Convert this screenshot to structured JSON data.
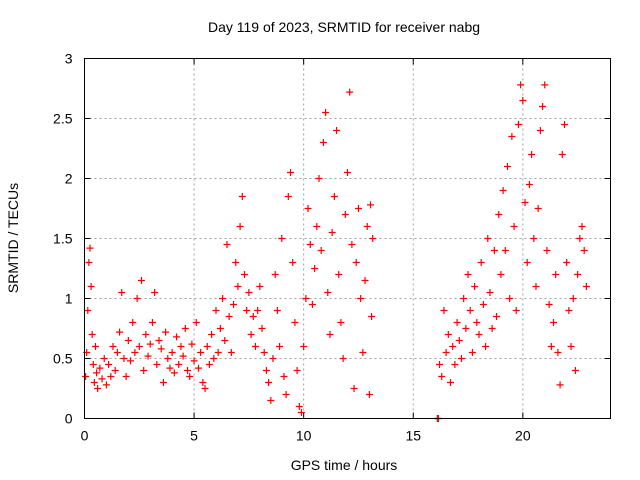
{
  "chart_data": {
    "type": "scatter",
    "title": "Day 119 of 2023, SRMTID for receiver nabg",
    "xlabel": "GPS time / hours",
    "ylabel": "SRMTID / TECUs",
    "xlim": [
      0,
      24
    ],
    "ylim": [
      0,
      3
    ],
    "xticks": [
      0,
      5,
      10,
      15,
      20
    ],
    "xtick_labels": [
      "0",
      "5",
      "10",
      "15",
      "20"
    ],
    "yticks": [
      0,
      0.5,
      1,
      1.5,
      2,
      2.5,
      3
    ],
    "ytick_labels": [
      "0",
      "0.5",
      "1",
      "1.5",
      "2",
      "2.5",
      "3"
    ],
    "grid": true,
    "marker": "+",
    "color": "#ff0000",
    "series": [
      {
        "name": "SRMTID",
        "points": [
          [
            0.05,
            0.35
          ],
          [
            0.1,
            0.55
          ],
          [
            0.15,
            0.9
          ],
          [
            0.2,
            1.3
          ],
          [
            0.25,
            1.42
          ],
          [
            0.3,
            1.1
          ],
          [
            0.35,
            0.7
          ],
          [
            0.4,
            0.45
          ],
          [
            0.45,
            0.3
          ],
          [
            0.5,
            0.6
          ],
          [
            0.55,
            0.38
          ],
          [
            0.6,
            0.25
          ],
          [
            0.7,
            0.42
          ],
          [
            0.8,
            0.33
          ],
          [
            0.9,
            0.5
          ],
          [
            1.0,
            0.28
          ],
          [
            1.1,
            0.45
          ],
          [
            1.2,
            0.35
          ],
          [
            1.3,
            0.6
          ],
          [
            1.4,
            0.4
          ],
          [
            1.5,
            0.55
          ],
          [
            1.6,
            0.72
          ],
          [
            1.7,
            1.05
          ],
          [
            1.8,
            0.5
          ],
          [
            1.9,
            0.35
          ],
          [
            2.0,
            0.65
          ],
          [
            2.1,
            0.48
          ],
          [
            2.2,
            0.8
          ],
          [
            2.3,
            0.55
          ],
          [
            2.4,
            1.0
          ],
          [
            2.5,
            0.6
          ],
          [
            2.6,
            1.15
          ],
          [
            2.7,
            0.4
          ],
          [
            2.8,
            0.7
          ],
          [
            2.9,
            0.52
          ],
          [
            3.0,
            0.62
          ],
          [
            3.1,
            0.8
          ],
          [
            3.2,
            1.05
          ],
          [
            3.3,
            0.45
          ],
          [
            3.4,
            0.65
          ],
          [
            3.5,
            0.58
          ],
          [
            3.6,
            0.3
          ],
          [
            3.7,
            0.72
          ],
          [
            3.8,
            0.5
          ],
          [
            3.9,
            0.42
          ],
          [
            4.0,
            0.55
          ],
          [
            4.1,
            0.38
          ],
          [
            4.2,
            0.68
          ],
          [
            4.3,
            0.45
          ],
          [
            4.4,
            0.6
          ],
          [
            4.5,
            0.52
          ],
          [
            4.6,
            0.75
          ],
          [
            4.7,
            0.4
          ],
          [
            4.8,
            0.35
          ],
          [
            4.9,
            0.62
          ],
          [
            5.0,
            0.48
          ],
          [
            5.1,
            0.8
          ],
          [
            5.2,
            0.42
          ],
          [
            5.3,
            0.55
          ],
          [
            5.4,
            0.3
          ],
          [
            5.5,
            0.25
          ],
          [
            5.6,
            0.6
          ],
          [
            5.7,
            0.45
          ],
          [
            5.8,
            0.7
          ],
          [
            5.9,
            0.5
          ],
          [
            6.0,
            0.9
          ],
          [
            6.1,
            0.55
          ],
          [
            6.2,
            0.75
          ],
          [
            6.3,
            1.0
          ],
          [
            6.4,
            0.65
          ],
          [
            6.5,
            1.45
          ],
          [
            6.6,
            0.85
          ],
          [
            6.7,
            0.55
          ],
          [
            6.8,
            0.95
          ],
          [
            6.9,
            1.3
          ],
          [
            7.0,
            1.1
          ],
          [
            7.1,
            1.6
          ],
          [
            7.2,
            1.85
          ],
          [
            7.3,
            1.2
          ],
          [
            7.4,
            0.9
          ],
          [
            7.5,
            1.05
          ],
          [
            7.6,
            0.7
          ],
          [
            7.7,
            0.85
          ],
          [
            7.8,
            0.6
          ],
          [
            7.9,
            0.9
          ],
          [
            8.0,
            1.1
          ],
          [
            8.1,
            0.75
          ],
          [
            8.2,
            0.55
          ],
          [
            8.3,
            0.4
          ],
          [
            8.4,
            0.3
          ],
          [
            8.5,
            0.15
          ],
          [
            8.6,
            0.5
          ],
          [
            8.7,
            1.2
          ],
          [
            8.8,
            0.9
          ],
          [
            8.9,
            0.6
          ],
          [
            9.0,
            1.5
          ],
          [
            9.1,
            0.35
          ],
          [
            9.2,
            0.2
          ],
          [
            9.3,
            1.85
          ],
          [
            9.4,
            2.05
          ],
          [
            9.5,
            1.3
          ],
          [
            9.6,
            0.8
          ],
          [
            9.7,
            0.4
          ],
          [
            9.8,
            0.1
          ],
          [
            9.9,
            0.05
          ],
          [
            10.0,
            0.6
          ],
          [
            10.1,
            1.0
          ],
          [
            10.2,
            1.75
          ],
          [
            10.3,
            1.45
          ],
          [
            10.4,
            0.95
          ],
          [
            10.5,
            1.25
          ],
          [
            10.6,
            1.6
          ],
          [
            10.7,
            2.0
          ],
          [
            10.8,
            1.4
          ],
          [
            10.9,
            2.3
          ],
          [
            11.0,
            2.55
          ],
          [
            11.1,
            1.05
          ],
          [
            11.2,
            0.7
          ],
          [
            11.3,
            1.55
          ],
          [
            11.4,
            1.85
          ],
          [
            11.5,
            2.4
          ],
          [
            11.6,
            1.2
          ],
          [
            11.7,
            0.8
          ],
          [
            11.8,
            0.5
          ],
          [
            11.9,
            1.7
          ],
          [
            12.0,
            2.05
          ],
          [
            12.1,
            2.72
          ],
          [
            12.2,
            1.45
          ],
          [
            12.3,
            0.25
          ],
          [
            12.4,
            1.3
          ],
          [
            12.5,
            1.75
          ],
          [
            12.6,
            1.0
          ],
          [
            12.7,
            0.55
          ],
          [
            12.8,
            1.15
          ],
          [
            12.9,
            1.6
          ],
          [
            13.0,
            0.2
          ],
          [
            13.05,
            1.78
          ],
          [
            13.1,
            0.85
          ],
          [
            13.15,
            1.5
          ],
          [
            16.1,
            0.0
          ],
          [
            16.15,
            0.0
          ],
          [
            16.2,
            0.45
          ],
          [
            16.3,
            0.35
          ],
          [
            16.4,
            0.9
          ],
          [
            16.5,
            0.55
          ],
          [
            16.6,
            0.7
          ],
          [
            16.7,
            0.3
          ],
          [
            16.8,
            0.6
          ],
          [
            16.9,
            0.45
          ],
          [
            17.0,
            0.8
          ],
          [
            17.1,
            0.65
          ],
          [
            17.2,
            0.5
          ],
          [
            17.3,
            1.0
          ],
          [
            17.4,
            0.75
          ],
          [
            17.5,
            1.2
          ],
          [
            17.6,
            0.9
          ],
          [
            17.7,
            0.55
          ],
          [
            17.8,
            1.1
          ],
          [
            17.9,
            0.8
          ],
          [
            18.0,
            0.7
          ],
          [
            18.1,
            1.3
          ],
          [
            18.2,
            0.95
          ],
          [
            18.3,
            0.6
          ],
          [
            18.4,
            1.5
          ],
          [
            18.5,
            1.05
          ],
          [
            18.6,
            0.75
          ],
          [
            18.7,
            1.4
          ],
          [
            18.8,
            0.85
          ],
          [
            18.9,
            1.7
          ],
          [
            19.0,
            1.2
          ],
          [
            19.1,
            1.9
          ],
          [
            19.2,
            1.4
          ],
          [
            19.3,
            2.1
          ],
          [
            19.4,
            1.0
          ],
          [
            19.5,
            2.35
          ],
          [
            19.6,
            1.6
          ],
          [
            19.7,
            0.9
          ],
          [
            19.8,
            2.45
          ],
          [
            19.9,
            2.78
          ],
          [
            20.0,
            2.65
          ],
          [
            20.1,
            1.8
          ],
          [
            20.2,
            1.3
          ],
          [
            20.3,
            1.95
          ],
          [
            20.4,
            2.2
          ],
          [
            20.5,
            1.5
          ],
          [
            20.6,
            1.1
          ],
          [
            20.7,
            1.75
          ],
          [
            20.8,
            2.4
          ],
          [
            20.9,
            2.6
          ],
          [
            21.0,
            2.78
          ],
          [
            21.1,
            1.4
          ],
          [
            21.2,
            0.95
          ],
          [
            21.3,
            0.6
          ],
          [
            21.4,
            0.8
          ],
          [
            21.5,
            1.2
          ],
          [
            21.6,
            0.55
          ],
          [
            21.7,
            0.28
          ],
          [
            21.8,
            2.2
          ],
          [
            21.9,
            2.45
          ],
          [
            22.0,
            1.3
          ],
          [
            22.1,
            0.9
          ],
          [
            22.2,
            0.6
          ],
          [
            22.3,
            1.0
          ],
          [
            22.4,
            0.4
          ],
          [
            22.5,
            1.2
          ],
          [
            22.6,
            1.5
          ],
          [
            22.7,
            1.6
          ],
          [
            22.8,
            1.4
          ],
          [
            22.9,
            1.1
          ]
        ]
      }
    ]
  }
}
